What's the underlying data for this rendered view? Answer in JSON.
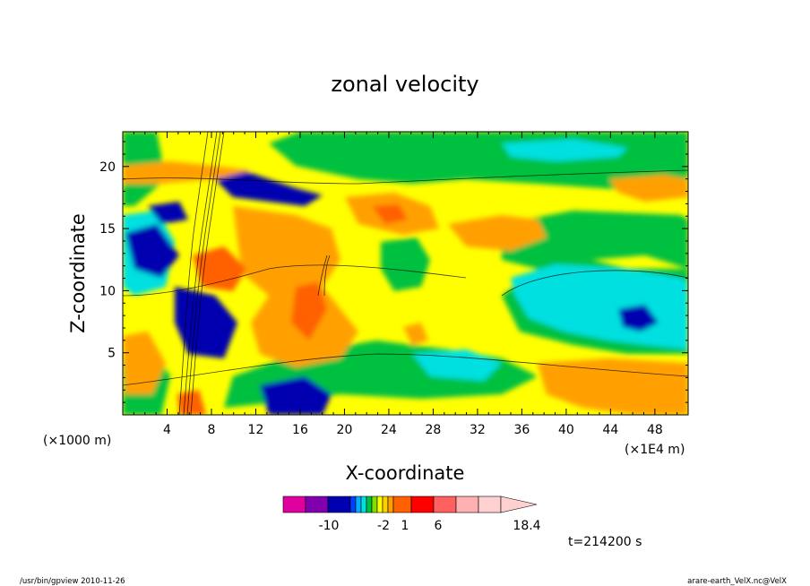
{
  "chart_data": {
    "type": "heatmap",
    "title": "zonal velocity",
    "xlabel": "X-coordinate",
    "ylabel": "Z-coordinate",
    "x_unit_left": "(×1000 m)",
    "x_unit_right": "(×1E4 m)",
    "x_ticks": [
      "4",
      "8",
      "12",
      "16",
      "20",
      "24",
      "28",
      "32",
      "36",
      "40",
      "44",
      "48"
    ],
    "y_ticks": [
      "5",
      "10",
      "15",
      "20"
    ],
    "xlim": [
      0,
      51
    ],
    "ylim": [
      0,
      22.8
    ],
    "time_label": "t=214200 s",
    "colorbar": {
      "tick_labels": [
        "-10",
        "-2",
        "1",
        "6",
        "18.4"
      ],
      "colors": [
        "#e0009f",
        "#8000b0",
        "#0000b0",
        "#0040ff",
        "#00b0ff",
        "#00e0e0",
        "#00c040",
        "#80e000",
        "#ffff00",
        "#ffd000",
        "#ffa000",
        "#ff6000",
        "#ff0000",
        "#ff6060",
        "#ffb0b0",
        "#ffd0d0"
      ]
    },
    "fields": {
      "background": "#ffff00",
      "legend": [
        "blue",
        "cyan",
        "green",
        "yellow",
        "orange",
        "red"
      ]
    }
  },
  "footer": {
    "left": "/usr/bin/gpview   2010-11-26",
    "right": "arare-earth_VelX.nc@VelX"
  }
}
